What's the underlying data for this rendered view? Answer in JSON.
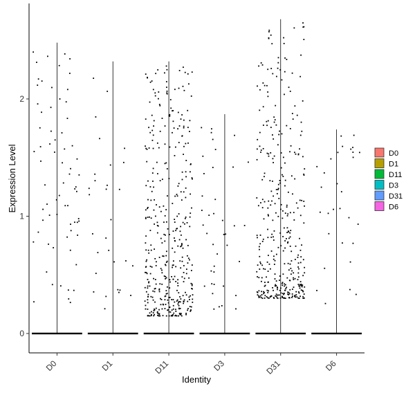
{
  "chart_data": {
    "type": "scatter",
    "subtype": "violin-jitter",
    "title": "",
    "xlabel": "Identity",
    "ylabel": "Expression Level",
    "ylim": [
      -0.15,
      2.7
    ],
    "yticks": [
      0,
      1,
      2
    ],
    "grid": false,
    "legend_position": "right",
    "categories": [
      "D0",
      "D1",
      "D11",
      "D3",
      "D31",
      "D6"
    ],
    "series": [
      {
        "name": "D0",
        "color": "#F8766D",
        "max": 2.48,
        "n_zero": 250,
        "n_points": 70,
        "dist": [
          0.25,
          2.4
        ]
      },
      {
        "name": "D1",
        "color": "#B79F00",
        "max": 2.32,
        "n_zero": 250,
        "n_points": 30,
        "dist": [
          0.2,
          2.2
        ]
      },
      {
        "name": "D11",
        "color": "#00BA38",
        "max": 2.32,
        "n_zero": 250,
        "n_points": 420,
        "dist": [
          0.15,
          2.3
        ]
      },
      {
        "name": "D3",
        "color": "#00BFC4",
        "max": 1.87,
        "n_zero": 250,
        "n_points": 40,
        "dist": [
          0.15,
          1.8
        ]
      },
      {
        "name": "D31",
        "color": "#619CFF",
        "max": 2.68,
        "n_zero": 250,
        "n_points": 380,
        "dist": [
          0.3,
          2.65
        ]
      },
      {
        "name": "D6",
        "color": "#F564E3",
        "max": 1.74,
        "n_zero": 250,
        "n_points": 30,
        "dist": [
          0.25,
          1.75
        ]
      }
    ]
  }
}
